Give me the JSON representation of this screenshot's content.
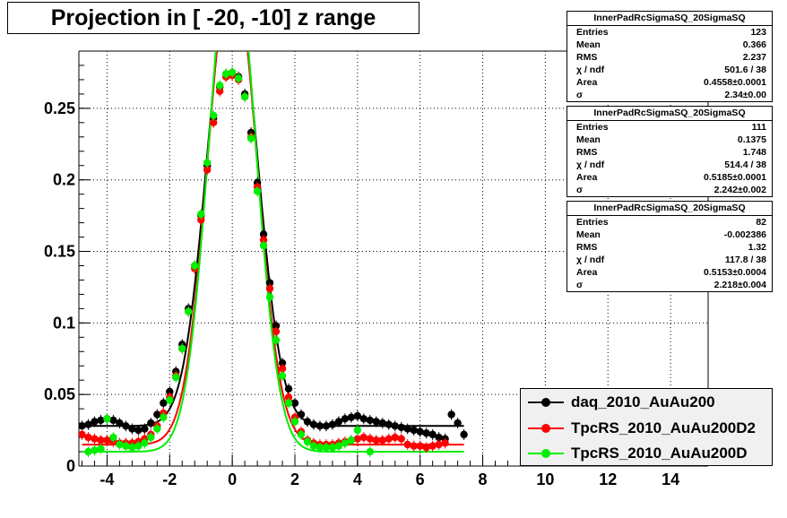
{
  "title": "Projection in [ -20, -10] z range",
  "stats_boxes": [
    {
      "name": "InnerPadRcSigmaSQ_20SigmaSQ",
      "rows": [
        {
          "label": "Entries",
          "value": "123"
        },
        {
          "label": "Mean",
          "value": "0.366"
        },
        {
          "label": "RMS",
          "value": "2.237"
        },
        {
          "label": "χ  / ndf",
          "value": "501.6 / 38"
        },
        {
          "label": "Area",
          "value": "0.4558±0.0001"
        },
        {
          "label": "σ",
          "value": "2.34±0.00"
        }
      ]
    },
    {
      "name": "InnerPadRcSigmaSQ_20SigmaSQ",
      "rows": [
        {
          "label": "Entries",
          "value": "111"
        },
        {
          "label": "Mean",
          "value": "0.1375"
        },
        {
          "label": "RMS",
          "value": "1.748"
        },
        {
          "label": "χ  / ndf",
          "value": "514.4 / 38"
        },
        {
          "label": "Area",
          "value": "0.5185±0.0001"
        },
        {
          "label": "σ",
          "value": "2.242±0.002"
        }
      ]
    },
    {
      "name": "InnerPadRcSigmaSQ_20SigmaSQ",
      "rows": [
        {
          "label": "Entries",
          "value": "82"
        },
        {
          "label": "Mean",
          "value": "-0.002386"
        },
        {
          "label": "RMS",
          "value": "1.32"
        },
        {
          "label": "χ  / ndf",
          "value": "117.8 / 38"
        },
        {
          "label": "Area",
          "value": "0.5153±0.0004"
        },
        {
          "label": "σ",
          "value": "2.218±0.004"
        }
      ]
    }
  ],
  "chart_data": {
    "type": "scatter",
    "title": "Projection in [ -20, -10] z range",
    "xlim": [
      -4.9,
      15.2
    ],
    "ylim": [
      0,
      0.29
    ],
    "x_ticks": [
      -4,
      -2,
      0,
      2,
      4,
      6,
      8,
      10,
      12,
      14
    ],
    "x_tick_labels": [
      "-4",
      "-2",
      "0",
      "2",
      "4",
      "6",
      "8",
      "10",
      "12",
      "14"
    ],
    "y_ticks": [
      0,
      0.05,
      0.1,
      0.15,
      0.2,
      0.25
    ],
    "y_tick_labels": [
      "0",
      "0.05",
      "0.1",
      "0.15",
      "0.2",
      "0.25"
    ],
    "grid": true,
    "legend_position": "bottom-right",
    "series": [
      {
        "name": "daq_2010_AuAu200",
        "color": "#000000",
        "x": [
          -4.8,
          -4.6,
          -4.4,
          -4.2,
          -4.0,
          -3.8,
          -3.6,
          -3.4,
          -3.2,
          -3.0,
          -2.8,
          -2.6,
          -2.4,
          -2.2,
          -2.0,
          -1.8,
          -1.6,
          -1.4,
          -1.2,
          -1.0,
          -0.8,
          -0.6,
          -0.4,
          -0.2,
          0.0,
          0.2,
          0.4,
          0.6,
          0.8,
          1.0,
          1.2,
          1.4,
          1.6,
          1.8,
          2.0,
          2.2,
          2.4,
          2.6,
          2.8,
          3.0,
          3.2,
          3.4,
          3.6,
          3.8,
          4.0,
          4.2,
          4.4,
          4.6,
          4.8,
          5.0,
          5.2,
          5.4,
          5.6,
          5.8,
          6.0,
          6.2,
          6.4,
          6.6,
          6.8,
          7.0,
          7.2,
          7.4
        ],
        "y": [
          0.028,
          0.029,
          0.031,
          0.032,
          0.033,
          0.032,
          0.03,
          0.028,
          0.026,
          0.025,
          0.026,
          0.03,
          0.036,
          0.044,
          0.052,
          0.066,
          0.085,
          0.11,
          0.14,
          0.175,
          0.21,
          0.243,
          0.265,
          0.274,
          0.275,
          0.272,
          0.26,
          0.233,
          0.198,
          0.162,
          0.128,
          0.098,
          0.072,
          0.054,
          0.044,
          0.036,
          0.031,
          0.029,
          0.028,
          0.028,
          0.029,
          0.031,
          0.033,
          0.034,
          0.035,
          0.033,
          0.032,
          0.031,
          0.03,
          0.029,
          0.028,
          0.027,
          0.026,
          0.025,
          0.024,
          0.023,
          0.022,
          0.02,
          0.019,
          0.036,
          0.03,
          0.022
        ]
      },
      {
        "name": "TpcRS_2010_AuAu200D2",
        "color": "#ff0000",
        "x": [
          -4.8,
          -4.6,
          -4.4,
          -4.2,
          -4.0,
          -3.8,
          -3.6,
          -3.4,
          -3.2,
          -3.0,
          -2.8,
          -2.6,
          -2.4,
          -2.2,
          -2.0,
          -1.8,
          -1.6,
          -1.4,
          -1.2,
          -1.0,
          -0.8,
          -0.6,
          -0.4,
          -0.2,
          0.0,
          0.2,
          0.4,
          0.6,
          0.8,
          1.0,
          1.2,
          1.4,
          1.6,
          1.8,
          2.0,
          2.2,
          2.4,
          2.6,
          2.8,
          3.0,
          3.2,
          3.4,
          3.6,
          3.8,
          4.0,
          4.2,
          4.4,
          4.6,
          4.8,
          5.0,
          5.2,
          5.4,
          5.6,
          5.8,
          6.0,
          6.2,
          6.4,
          6.6,
          6.8
        ],
        "y": [
          0.022,
          0.02,
          0.019,
          0.018,
          0.018,
          0.017,
          0.016,
          0.016,
          0.016,
          0.017,
          0.019,
          0.022,
          0.028,
          0.037,
          0.048,
          0.063,
          0.082,
          0.108,
          0.138,
          0.172,
          0.207,
          0.24,
          0.262,
          0.272,
          0.273,
          0.27,
          0.258,
          0.23,
          0.195,
          0.158,
          0.124,
          0.094,
          0.068,
          0.048,
          0.034,
          0.024,
          0.018,
          0.016,
          0.015,
          0.015,
          0.015,
          0.016,
          0.017,
          0.018,
          0.019,
          0.02,
          0.019,
          0.018,
          0.018,
          0.019,
          0.02,
          0.019,
          0.015,
          0.014,
          0.014,
          0.013,
          0.014,
          0.015,
          0.016
        ]
      },
      {
        "name": "TpcRS_2010_AuAu200D",
        "color": "#00ee00",
        "x": [
          -4.6,
          -4.4,
          -4.2,
          -4.0,
          -3.8,
          -3.6,
          -3.4,
          -3.2,
          -3.0,
          -2.8,
          -2.6,
          -2.4,
          -2.2,
          -2.0,
          -1.8,
          -1.6,
          -1.4,
          -1.2,
          -1.0,
          -0.8,
          -0.6,
          -0.4,
          -0.2,
          0.0,
          0.2,
          0.4,
          0.6,
          0.8,
          1.0,
          1.2,
          1.4,
          1.6,
          1.8,
          2.0,
          2.2,
          2.4,
          2.6,
          2.8,
          3.0,
          3.2,
          3.4,
          3.6,
          3.8,
          4.0,
          4.4
        ],
        "y": [
          0.01,
          0.011,
          0.012,
          0.033,
          0.02,
          0.015,
          0.014,
          0.013,
          0.014,
          0.016,
          0.02,
          0.026,
          0.034,
          0.046,
          0.062,
          0.082,
          0.108,
          0.14,
          0.176,
          0.212,
          0.245,
          0.266,
          0.274,
          0.275,
          0.271,
          0.258,
          0.229,
          0.192,
          0.154,
          0.118,
          0.088,
          0.063,
          0.044,
          0.031,
          0.022,
          0.017,
          0.014,
          0.013,
          0.013,
          0.013,
          0.014,
          0.016,
          0.018,
          0.025,
          0.01
        ]
      }
    ],
    "fit_curves": [
      {
        "color": "#000000",
        "sigma": 0.78,
        "amp": 0.32,
        "mu": 0.0,
        "offset": 0.028
      },
      {
        "color": "#ff0000",
        "sigma": 0.76,
        "amp": 0.34,
        "mu": 0.0,
        "offset": 0.015
      },
      {
        "color": "#00ee00",
        "sigma": 0.74,
        "amp": 0.36,
        "mu": 0.0,
        "offset": 0.01
      }
    ]
  }
}
